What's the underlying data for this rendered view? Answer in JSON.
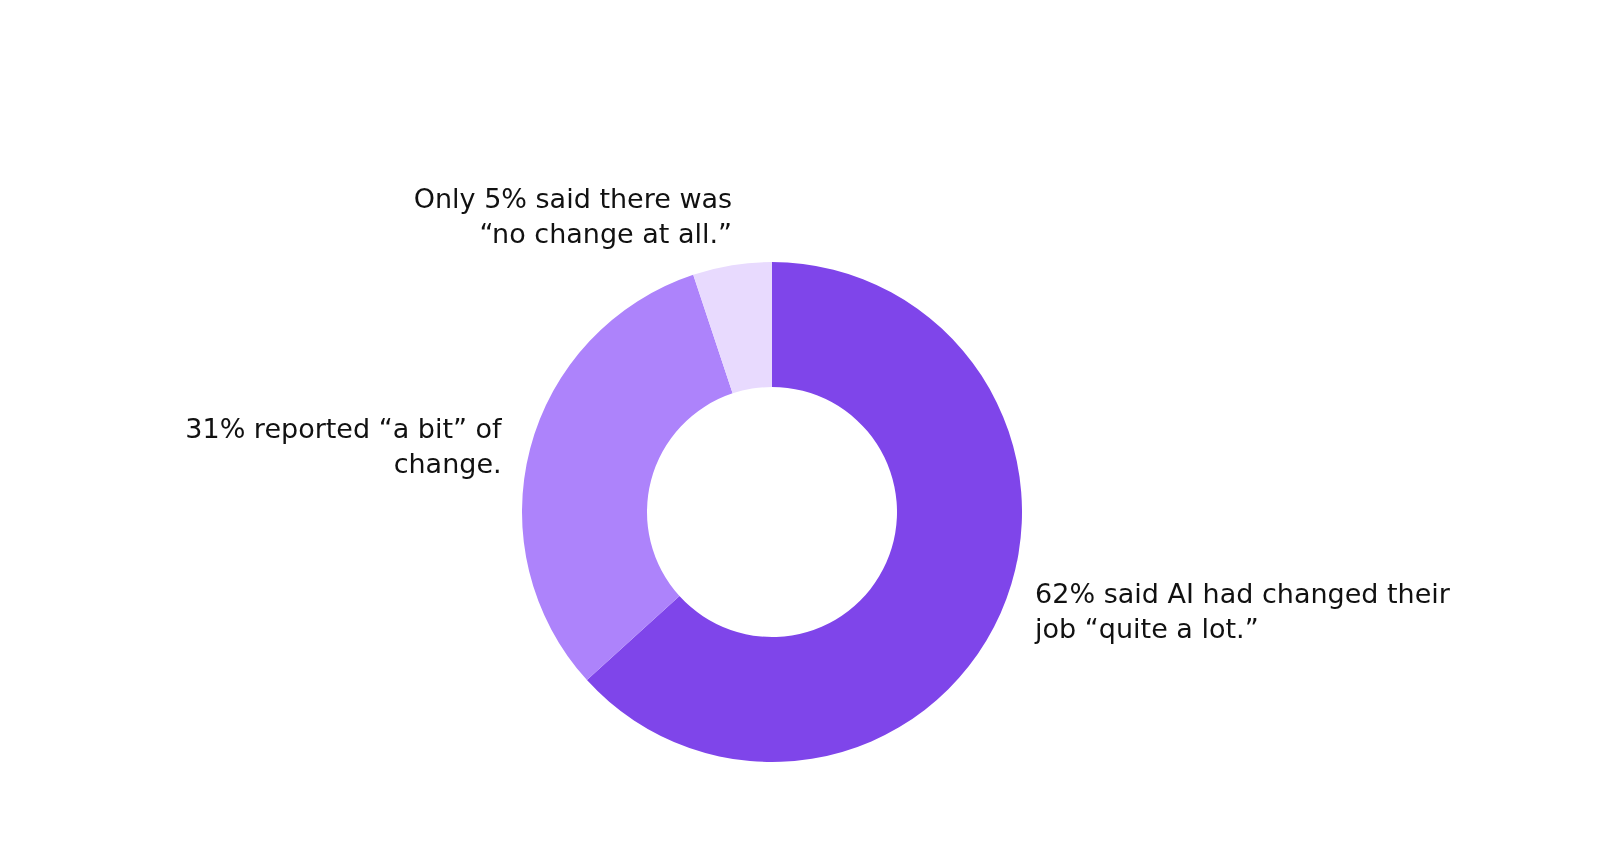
{
  "chart_data": {
    "type": "donut",
    "categories": [
      "62% said AI had changed their job “quite a lot.”",
      "31% reported “a bit” of change.",
      "Only 5% said there was “no change at all.”"
    ],
    "values": [
      62,
      31,
      5
    ],
    "colors": [
      "#7f45ea",
      "#ad83fb",
      "#e8dafe"
    ]
  }
}
